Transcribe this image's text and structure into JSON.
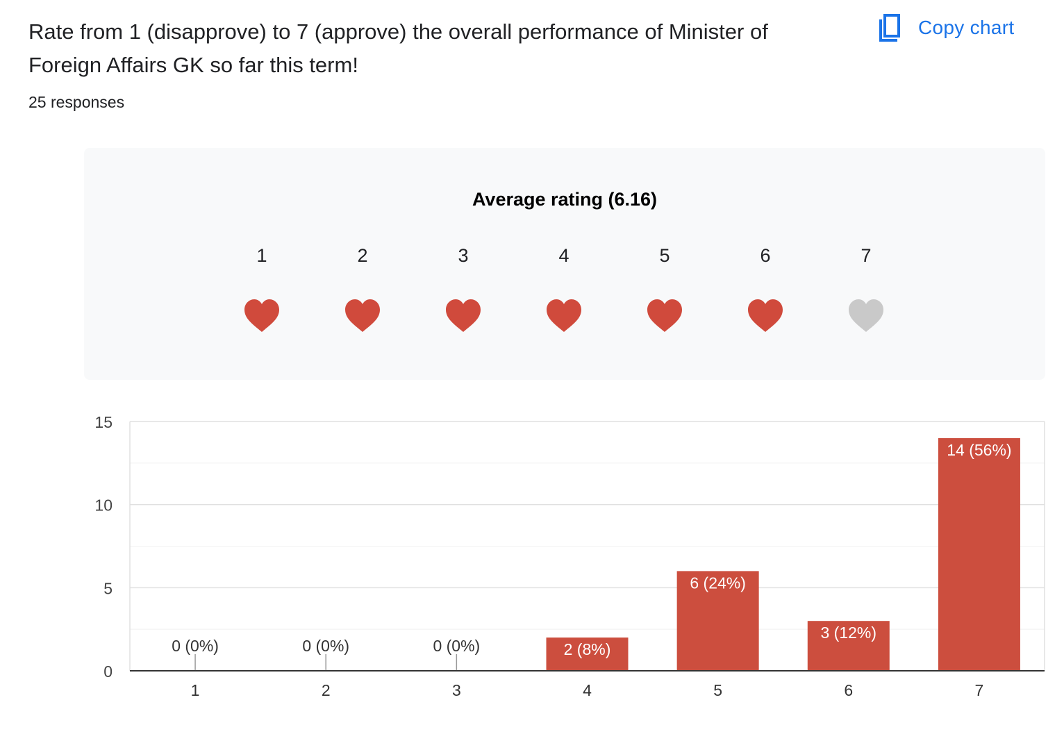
{
  "question": {
    "title": "Rate from 1 (disapprove) to 7 (approve) the overall performance of Minister of Foreign Affairs GK so far this term!",
    "responses": "25 responses"
  },
  "toolbar": {
    "copy_label": "Copy chart",
    "copy_icon": "copy-icon"
  },
  "rating_panel": {
    "title": "Average rating (6.16)",
    "levels": [
      "1",
      "2",
      "3",
      "4",
      "5",
      "6",
      "7"
    ],
    "filled_count": 6,
    "icon": "heart-icon",
    "filled_color": "#d04a3c",
    "empty_color": "#c9c9c9"
  },
  "colors": {
    "bar": "#cc4e3e",
    "link": "#1a73e8"
  },
  "chart_data": {
    "type": "bar",
    "categories": [
      "1",
      "2",
      "3",
      "4",
      "5",
      "6",
      "7"
    ],
    "values": [
      0,
      0,
      0,
      2,
      6,
      3,
      14
    ],
    "labels": [
      "0 (0%)",
      "0 (0%)",
      "0 (0%)",
      "2 (8%)",
      "6 (24%)",
      "3 (12%)",
      "14 (56%)"
    ],
    "yticks": [
      0,
      5,
      10,
      15
    ],
    "ylim": [
      0,
      15
    ],
    "grid": true
  }
}
